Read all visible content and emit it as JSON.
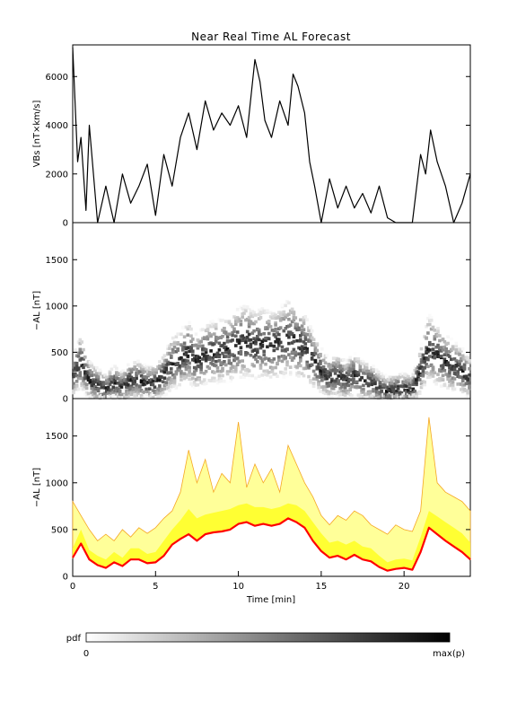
{
  "chart_data": [
    {
      "type": "line",
      "title": "Near Real Time AL Forecast",
      "ylabel": "VBs [nT×km/s]",
      "ylim": [
        0,
        7300
      ],
      "xlim": [
        0,
        24
      ],
      "yticks": [
        "0",
        "2000",
        "4000",
        "6000"
      ],
      "ytick_values": [
        0,
        2000,
        4000,
        6000
      ],
      "series": [
        {
          "x": [
            0,
            0.3,
            0.5,
            0.8,
            1.0,
            1.5,
            2.0,
            2.5,
            3.0,
            3.5,
            4.0,
            4.5,
            5.0,
            5.5,
            6.0,
            6.5,
            7.0,
            7.5,
            8.0,
            8.5,
            9.0,
            9.5,
            10.0,
            10.5,
            11.0,
            11.3,
            11.6,
            12.0,
            12.5,
            13.0,
            13.3,
            13.6,
            14.0,
            14.3,
            14.6,
            15.0,
            15.5,
            16.0,
            16.5,
            17.0,
            17.5,
            18.0,
            18.5,
            19.0,
            19.5,
            20.0,
            20.5,
            21.0,
            21.3,
            21.6,
            22.0,
            22.5,
            23.0,
            23.5,
            24.0
          ],
          "y": [
            7200,
            2500,
            3500,
            500,
            4000,
            0,
            1500,
            0,
            2000,
            800,
            1500,
            2400,
            300,
            2800,
            1500,
            3500,
            4500,
            3000,
            5000,
            3800,
            4500,
            4000,
            4800,
            3500,
            6700,
            5800,
            4200,
            3500,
            5000,
            4000,
            6100,
            5600,
            4500,
            2500,
            1500,
            0,
            1800,
            600,
            1500,
            600,
            1200,
            400,
            1500,
            200,
            0,
            0,
            0,
            2800,
            2000,
            3800,
            2500,
            1500,
            0,
            800,
            2000
          ]
        }
      ]
    },
    {
      "type": "heatmap",
      "ylabel": "−AL [nT]",
      "ylim": [
        0,
        1900
      ],
      "xlim": [
        0,
        24
      ],
      "yticks": [
        "0",
        "500",
        "1000",
        "1500"
      ],
      "ytick_values": [
        0,
        500,
        1000,
        1500
      ],
      "median": {
        "x": [
          0,
          0.5,
          1,
          1.5,
          2,
          2.5,
          3,
          3.5,
          4,
          4.5,
          5,
          5.5,
          6,
          6.5,
          7,
          7.5,
          8,
          8.5,
          9,
          9.5,
          10,
          10.5,
          11,
          11.5,
          12,
          12.5,
          13,
          13.5,
          14,
          14.5,
          15,
          15.5,
          16,
          16.5,
          17,
          17.5,
          18,
          18.5,
          19,
          19.5,
          20,
          20.5,
          21,
          21.5,
          22,
          22.5,
          23,
          23.5,
          24
        ],
        "y": [
          250,
          400,
          200,
          150,
          100,
          170,
          120,
          200,
          200,
          160,
          170,
          250,
          380,
          430,
          500,
          400,
          480,
          500,
          520,
          540,
          600,
          620,
          580,
          600,
          570,
          600,
          660,
          620,
          560,
          420,
          300,
          220,
          250,
          200,
          260,
          200,
          180,
          120,
          80,
          100,
          110,
          90,
          300,
          550,
          470,
          400,
          350,
          300,
          220
        ]
      }
    },
    {
      "type": "area",
      "ylabel": "−AL [nT]",
      "xlabel": "Time [min]",
      "ylim": [
        0,
        1900
      ],
      "xlim": [
        0,
        24
      ],
      "xticks": [
        "0",
        "5",
        "10",
        "15",
        "20"
      ],
      "xtick_values": [
        0,
        5,
        10,
        15,
        20
      ],
      "yticks": [
        "0",
        "500",
        "1000",
        "1500"
      ],
      "ytick_values": [
        0,
        500,
        1000,
        1500
      ],
      "series": [
        {
          "x": [
            0,
            0.5,
            1,
            1.5,
            2,
            2.5,
            3,
            3.5,
            4,
            4.5,
            5,
            5.5,
            6,
            6.5,
            7,
            7.5,
            8,
            8.5,
            9,
            9.5,
            10,
            10.5,
            11,
            11.5,
            12,
            12.5,
            13,
            13.5,
            14,
            14.5,
            15,
            15.5,
            16,
            16.5,
            17,
            17.5,
            18,
            18.5,
            19,
            19.5,
            20,
            20.5,
            21,
            21.5,
            22,
            22.5,
            23,
            23.5,
            24
          ],
          "lower": [
            200,
            350,
            180,
            120,
            90,
            150,
            110,
            180,
            180,
            140,
            150,
            220,
            340,
            400,
            450,
            380,
            450,
            470,
            480,
            500,
            560,
            580,
            540,
            560,
            540,
            560,
            620,
            580,
            520,
            380,
            270,
            200,
            220,
            180,
            230,
            180,
            160,
            100,
            60,
            80,
            90,
            70,
            260,
            520,
            450,
            380,
            320,
            260,
            180
          ],
          "median": [
            300,
            500,
            280,
            220,
            180,
            260,
            200,
            300,
            300,
            240,
            260,
            380,
            500,
            600,
            720,
            620,
            660,
            680,
            700,
            720,
            760,
            780,
            740,
            740,
            720,
            740,
            780,
            760,
            700,
            580,
            460,
            360,
            380,
            340,
            380,
            320,
            300,
            220,
            150,
            180,
            190,
            170,
            420,
            700,
            640,
            580,
            520,
            460,
            360
          ],
          "upper": [
            800,
            650,
            500,
            380,
            450,
            380,
            500,
            420,
            520,
            460,
            520,
            620,
            700,
            900,
            1350,
            1000,
            1250,
            900,
            1100,
            1000,
            1650,
            950,
            1200,
            1000,
            1150,
            900,
            1400,
            1200,
            1000,
            850,
            650,
            550,
            650,
            600,
            700,
            650,
            550,
            500,
            450,
            550,
            500,
            480,
            700,
            1700,
            1000,
            900,
            850,
            800,
            700
          ]
        }
      ]
    }
  ],
  "colorbar": {
    "label": "pdf",
    "min_label": "0",
    "max_label": "max(p)",
    "color_start": "#ffffff",
    "color_end": "#000000"
  },
  "colors": {
    "median_line": "#ff0000",
    "band_outer": "#f5a623",
    "band_fill": "#ffff33",
    "band_light": "#ffff99"
  }
}
